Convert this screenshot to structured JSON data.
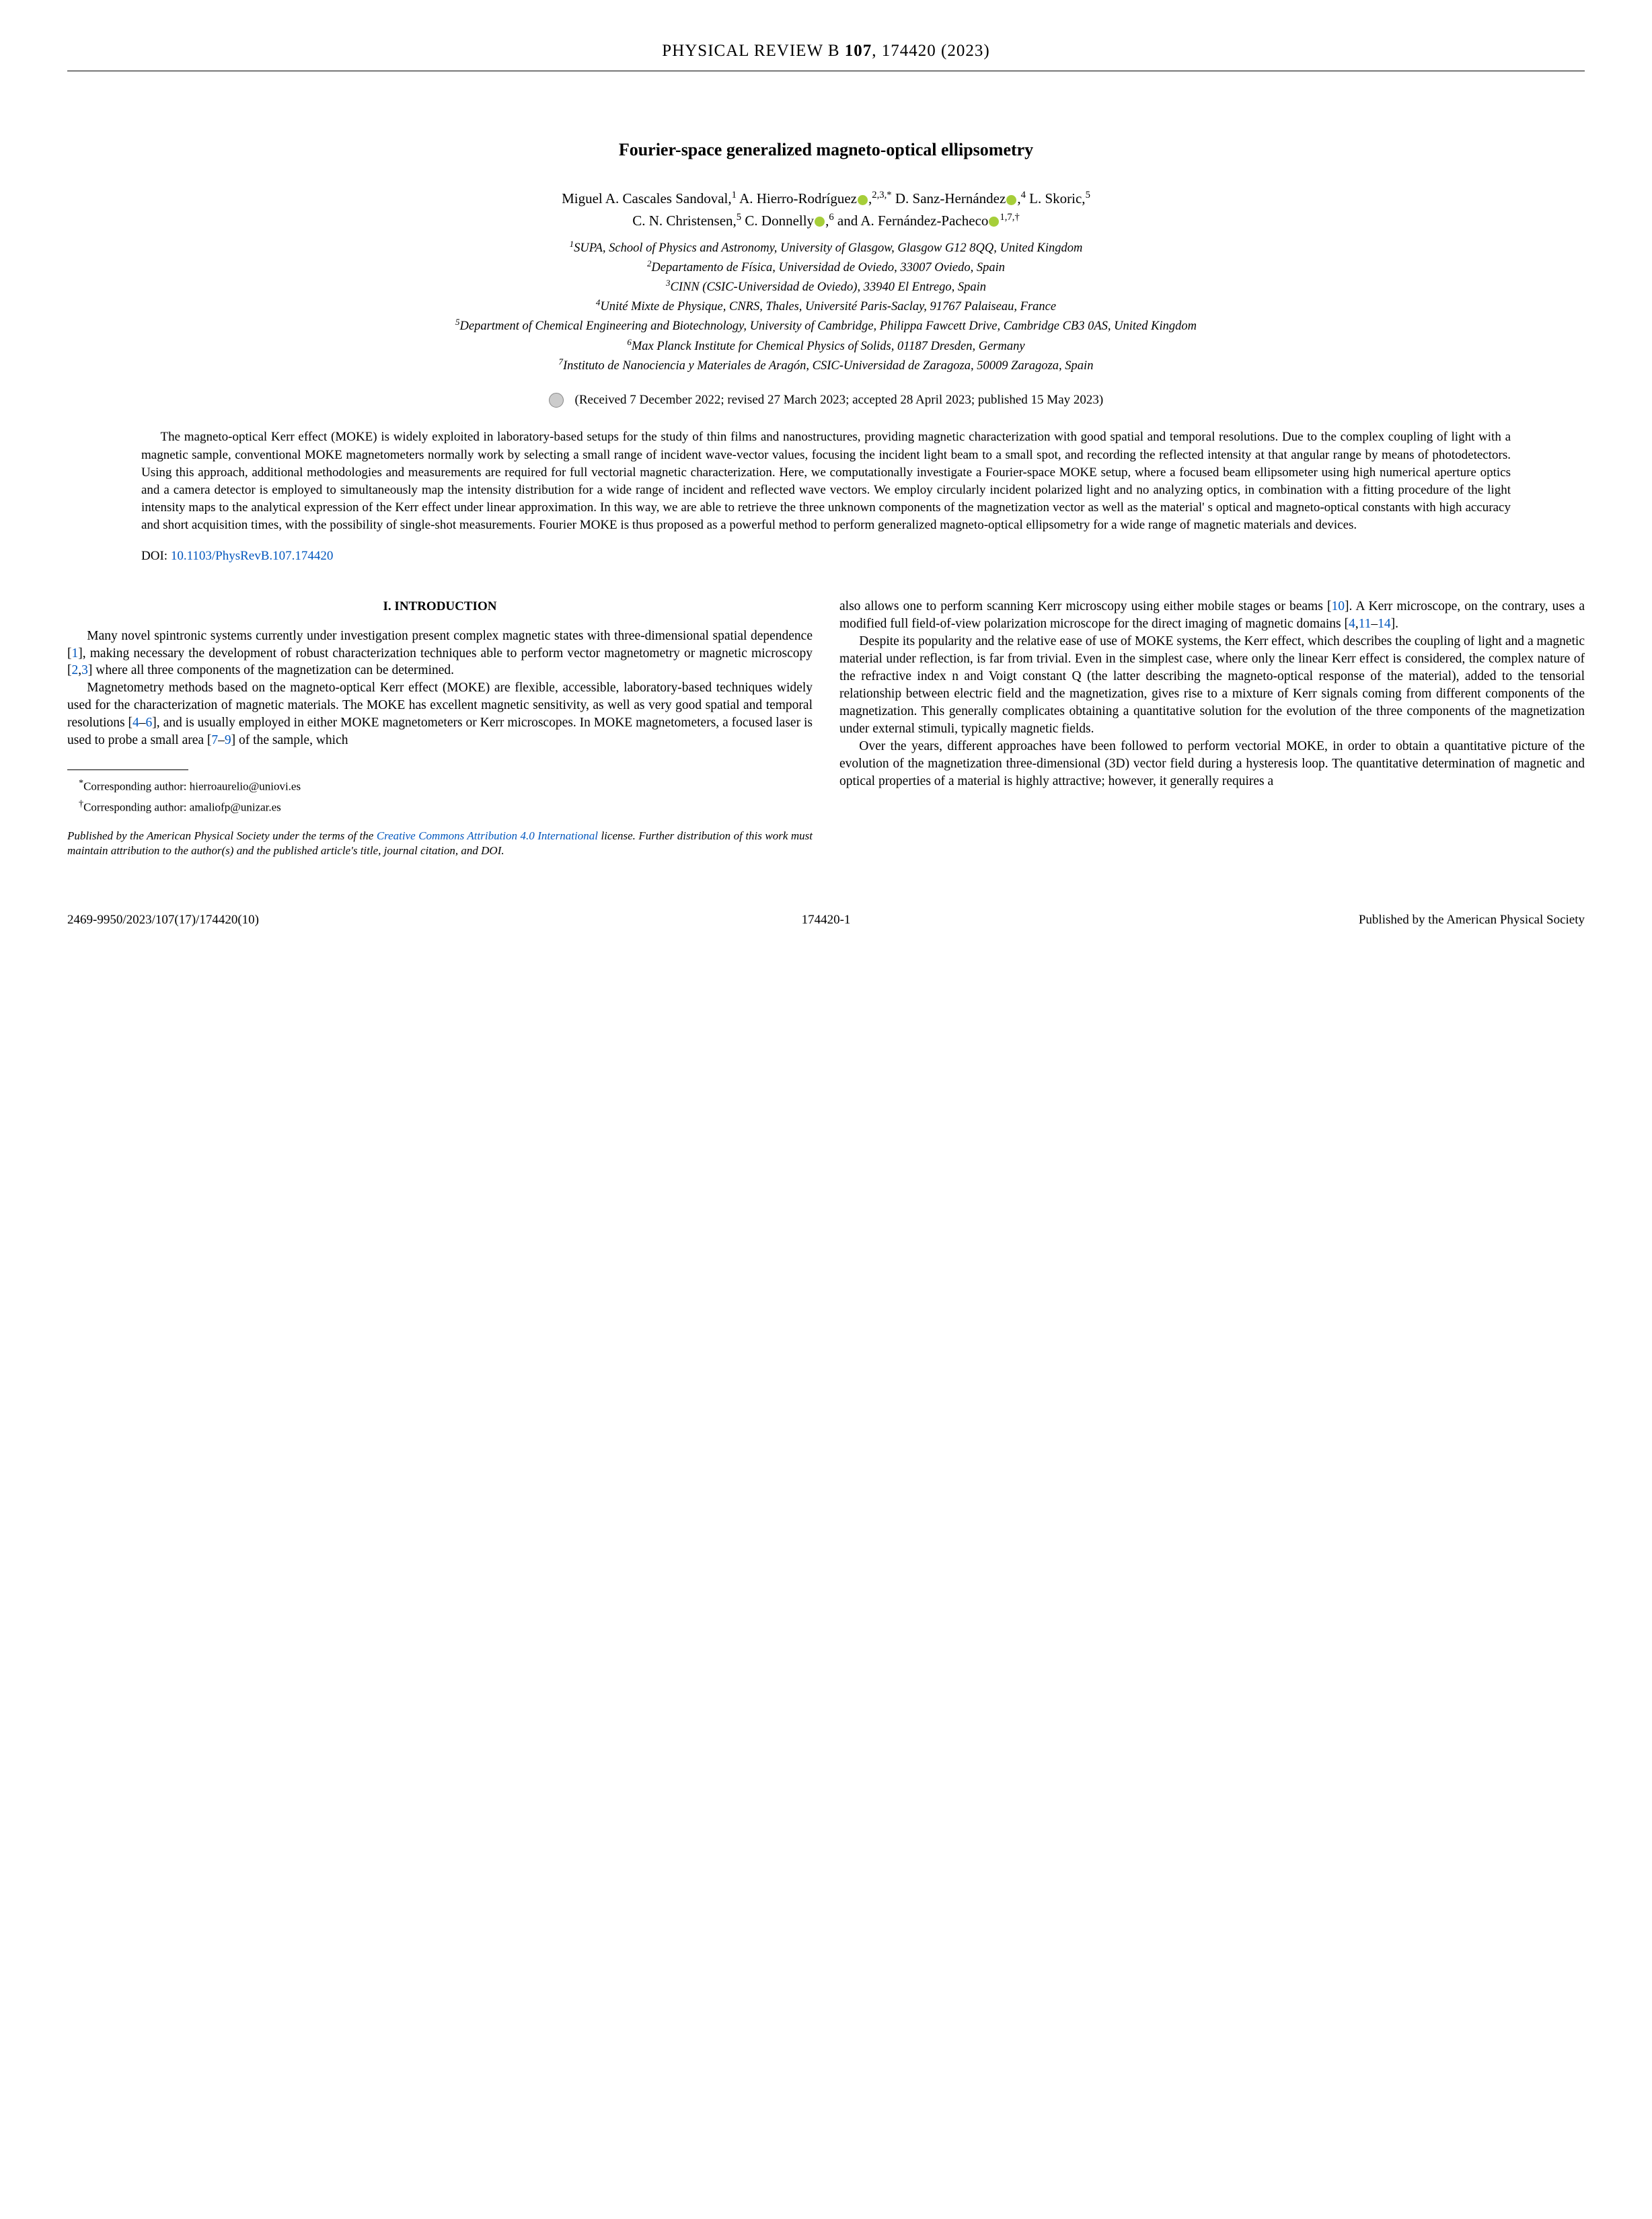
{
  "running_head": {
    "journal": "PHYSICAL REVIEW B",
    "volume": "107",
    "article": ", 174420 (2023)"
  },
  "title": "Fourier-space generalized magneto-optical ellipsometry",
  "authors_line1_parts": {
    "a1": "Miguel A. Cascales Sandoval,",
    "s1": "1",
    "a2": " A. Hierro-Rodríguez",
    "s2": "2,3,*",
    "a3": " D. Sanz-Hernández",
    "s3": "4",
    "a4": " L. Skoric,",
    "s4": "5"
  },
  "authors_line2_parts": {
    "a5": "C. N. Christensen,",
    "s5": "5",
    "a6": " C. Donnelly",
    "s6": "6",
    "a7": " and A. Fernández-Pacheco",
    "s7": "1,7,†"
  },
  "affils": {
    "f1": "SUPA, School of Physics and Astronomy, University of Glasgow, Glasgow G12 8QQ, United Kingdom",
    "f2": "Departamento de Física, Universidad de Oviedo, 33007 Oviedo, Spain",
    "f3": "CINN (CSIC-Universidad de Oviedo), 33940 El Entrego, Spain",
    "f4": "Unité Mixte de Physique, CNRS, Thales, Université Paris-Saclay, 91767 Palaiseau, France",
    "f5": "Department of Chemical Engineering and Biotechnology, University of Cambridge, Philippa Fawcett Drive, Cambridge CB3 0AS, United Kingdom",
    "f6": "Max Planck Institute for Chemical Physics of Solids, 01187 Dresden, Germany",
    "f7": "Instituto de Nanociencia y Materiales de Aragón, CSIC-Universidad de Zaragoza, 50009 Zaragoza, Spain"
  },
  "dates": "(Received 7 December 2022; revised 27 March 2023; accepted 28 April 2023; published 15 May 2023)",
  "abstract": "The magneto-optical Kerr effect (MOKE) is widely exploited in laboratory-based setups for the study of thin films and nanostructures, providing magnetic characterization with good spatial and temporal resolutions. Due to the complex coupling of light with a magnetic sample, conventional MOKE magnetometers normally work by selecting a small range of incident wave-vector values, focusing the incident light beam to a small spot, and recording the reflected intensity at that angular range by means of photodetectors. Using this approach, additional methodologies and measurements are required for full vectorial magnetic characterization. Here, we computationally investigate a Fourier-space MOKE setup, where a focused beam ellipsometer using high numerical aperture optics and a camera detector is employed to simultaneously map the intensity distribution for a wide range of incident and reflected wave vectors. We employ circularly incident polarized light and no analyzing optics, in combination with a fitting procedure of the light intensity maps to the analytical expression of the Kerr effect under linear approximation. In this way, we are able to retrieve the three unknown components of the magnetization vector as well as the material' s optical and magneto-optical constants with high accuracy and short acquisition times, with the possibility of single-shot measurements. Fourier MOKE is thus proposed as a powerful method to perform generalized magneto-optical ellipsometry for a wide range of magnetic materials and devices.",
  "doi_label": "DOI: ",
  "doi": "10.1103/PhysRevB.107.174420",
  "section_head": "I. INTRODUCTION",
  "col1": {
    "p1a": "Many novel spintronic systems currently under investigation present complex magnetic states with three-dimensional spatial dependence [",
    "r1": "1",
    "p1b": "], making necessary the development of robust characterization techniques able to perform vector magnetometry or magnetic microscopy [",
    "r2": "2",
    "p1c": ",",
    "r3": "3",
    "p1d": "] where all three components of the magnetization can be determined.",
    "p2a": "Magnetometry methods based on the magneto-optical Kerr effect (MOKE) are flexible, accessible, laboratory-based techniques widely used for the characterization of magnetic materials. The MOKE has excellent magnetic sensitivity, as well as very good spatial and temporal resolutions [",
    "r4": "4",
    "p2b": "–",
    "r5": "6",
    "p2c": "], and is usually employed in either MOKE magnetometers or Kerr microscopes. In MOKE magnetometers, a focused laser is used to probe a small area [",
    "r6": "7",
    "p2d": "–",
    "r7": "9",
    "p2e": "] of the sample, which"
  },
  "col2": {
    "p1a": "also allows one to perform scanning Kerr microscopy using either mobile stages or beams [",
    "r1": "10",
    "p1b": "]. A Kerr microscope, on the contrary, uses a modified full field-of-view polarization microscope for the direct imaging of magnetic domains [",
    "r2": "4",
    "p1c": ",",
    "r3": "11",
    "p1d": "–",
    "r4": "14",
    "p1e": "].",
    "p2": "Despite its popularity and the relative ease of use of MOKE systems, the Kerr effect, which describes the coupling of light and a magnetic material under reflection, is far from trivial. Even in the simplest case, where only the linear Kerr effect is considered, the complex nature of the refractive index n and Voigt constant Q (the latter describing the magneto-optical response of the material), added to the tensorial relationship between electric field and the magnetization, gives rise to a mixture of Kerr signals coming from different components of the magnetization. This generally complicates obtaining a quantitative solution for the evolution of the three components of the magnetization under external stimuli, typically magnetic fields.",
    "p3": "Over the years, different approaches have been followed to perform vectorial MOKE, in order to obtain a quantitative picture of the evolution of the magnetization three-dimensional (3D) vector field during a hysteresis loop. The quantitative determination of magnetic and optical properties of a material is highly attractive; however, it generally requires a"
  },
  "footnotes": {
    "f1": "Corresponding author: hierroaurelio@uniovi.es",
    "f2": "Corresponding author: amaliofp@unizar.es"
  },
  "license": {
    "pre": "Published by the American Physical Society under the terms of the ",
    "link": "Creative Commons Attribution 4.0 International",
    "post": " license. Further distribution of this work must maintain attribution to the author(s) and the published article's title, journal citation, and DOI."
  },
  "footer": {
    "left": "2469-9950/2023/107(17)/174420(10)",
    "center": "174420-1",
    "right": "Published by the American Physical Society"
  }
}
